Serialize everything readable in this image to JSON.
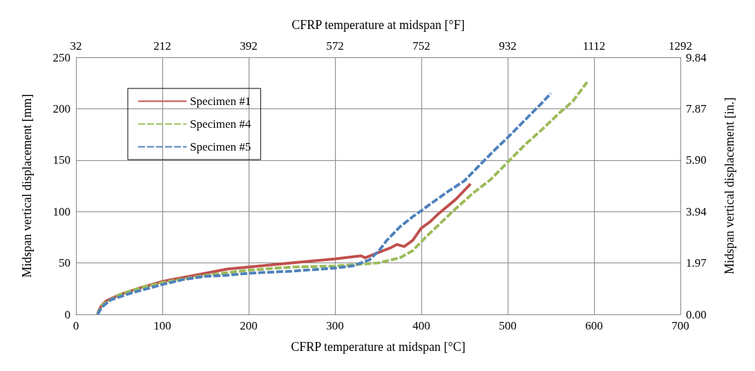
{
  "chart_data": {
    "type": "line",
    "xlabel": "CFRP temperature at midspan [°C]",
    "ylabel": "Midspan vertical displacement [mm]",
    "x2label": "CFRP temperature at midspan [°F]",
    "y2label": "Midspan vertical displacement [in.]",
    "xlim": [
      0,
      700
    ],
    "xticks": [
      0,
      100,
      200,
      300,
      400,
      500,
      600,
      700
    ],
    "ylim": [
      0,
      250
    ],
    "yticks": [
      0,
      50,
      100,
      150,
      200,
      250
    ],
    "x2lim": [
      32,
      1292
    ],
    "x2ticks": [
      32,
      212,
      392,
      572,
      752,
      932,
      1112,
      1292
    ],
    "y2lim": [
      0,
      9.84
    ],
    "y2ticks": [
      {
        "value": 0,
        "label": "0.00"
      },
      1.97,
      3.94,
      {
        "value": 5.9,
        "label": "5.90"
      },
      7.87,
      9.84
    ],
    "grid": true,
    "legend": "top left",
    "marker": "none",
    "series": [
      {
        "name": "Specimen #1",
        "color": "#c0504d",
        "line_style": "solid",
        "x": [
          25,
          27,
          30,
          35,
          50,
          75,
          100,
          125,
          150,
          175,
          200,
          250,
          300,
          330,
          335,
          350,
          365,
          372,
          380,
          390,
          400,
          410,
          420,
          440,
          457
        ],
        "values": [
          0,
          5,
          9,
          13,
          19,
          26,
          32,
          36,
          40,
          44,
          46,
          50,
          54,
          57,
          55,
          60,
          65,
          68,
          66,
          72,
          84,
          90,
          98,
          112,
          127
        ]
      },
      {
        "name": "Specimen #4",
        "color": "#9bbb59",
        "line_style": "dashed",
        "x": [
          25,
          30,
          50,
          75,
          100,
          150,
          200,
          250,
          300,
          350,
          375,
          390,
          405,
          420,
          440,
          460,
          480,
          500,
          520,
          540,
          560,
          575,
          585,
          592
        ],
        "values": [
          0,
          9,
          19,
          26,
          31,
          38,
          43,
          46,
          47,
          50,
          55,
          62,
          75,
          87,
          103,
          118,
          131,
          148,
          165,
          180,
          196,
          207,
          218,
          226
        ]
      },
      {
        "name": "Specimen #5",
        "color": "#4f81bd",
        "line_style": "dashed",
        "x": [
          25,
          30,
          40,
          65,
          100,
          125,
          150,
          175,
          200,
          250,
          300,
          320,
          340,
          352,
          360,
          375,
          390,
          405,
          430,
          450,
          465,
          485,
          500,
          520,
          540,
          550
        ],
        "values": [
          0,
          7,
          14,
          21,
          29,
          34,
          37,
          38,
          40,
          42,
          45,
          47,
          53,
          63,
          72,
          85,
          95,
          104,
          119,
          130,
          143,
          160,
          172,
          189,
          206,
          215
        ]
      }
    ]
  }
}
